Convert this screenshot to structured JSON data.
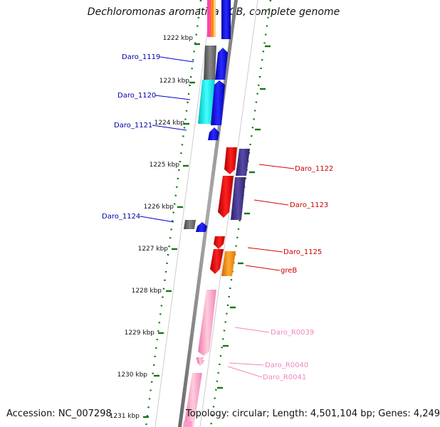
{
  "title": "Dechloromonas aromatica RCB, complete genome",
  "accession": "Accession: NC_007298",
  "topology": "Topology: circular; Length: 4,501,104 bp; Genes: 4,249",
  "colors": {
    "blue": "#0000ee",
    "dark_blue": "#000099",
    "red": "#ee0000",
    "dark_red": "#cc0000",
    "pink": "#ff99cc",
    "pink_label": "#ee88bb",
    "navy": "#443388",
    "gray": "#666666",
    "cyan": "#00eeee",
    "orange": "#ff8800",
    "tick_green": "#117711",
    "backbone": "#888888"
  },
  "scale_ticks": [
    "1222 kbp",
    "1223 kbp",
    "1224 kbp",
    "1225 kbp",
    "1226 kbp",
    "1227 kbp",
    "1228 kbp",
    "1229 kbp",
    "1230 kbp",
    "1231 kbp"
  ],
  "gene_labels": {
    "left": [
      "Daro_1119",
      "Daro_1120",
      "Daro_1121",
      "Daro_1124"
    ],
    "right": [
      "Daro_1122",
      "Daro_1123",
      "Daro_1125",
      "greB",
      "Daro_R0039",
      "Daro_R0040",
      "Daro_R0041"
    ]
  }
}
